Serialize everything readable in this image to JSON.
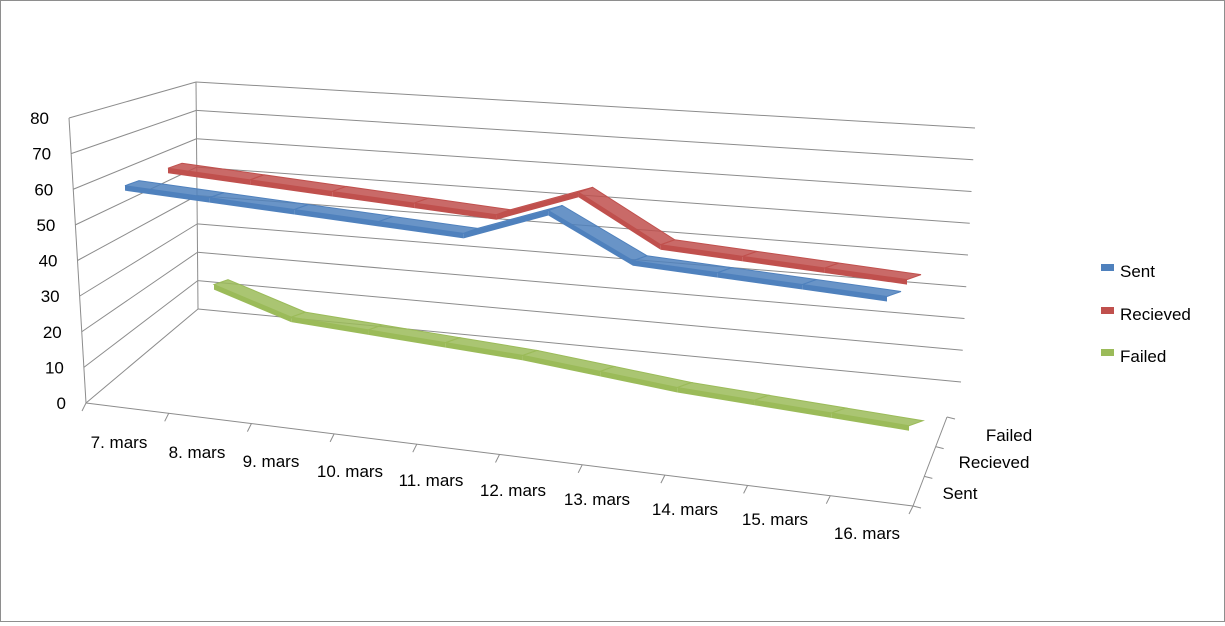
{
  "chart_data": {
    "type": "line",
    "style": "3d-ribbon",
    "categories": [
      "7. mars",
      "8. mars",
      "9. mars",
      "10. mars",
      "11. mars",
      "12. mars",
      "13. mars",
      "14. mars",
      "15. mars",
      "16. mars"
    ],
    "series": [
      {
        "name": "Sent",
        "color": "#4f81bd",
        "values": [
          59,
          58,
          57,
          56,
          55,
          64,
          52,
          51,
          50,
          49
        ]
      },
      {
        "name": "Recieved",
        "color": "#c0504d",
        "values": [
          62,
          61,
          60,
          59,
          58,
          67,
          54,
          53,
          52,
          51
        ]
      },
      {
        "name": "Failed",
        "color": "#9bbb59",
        "values": [
          18,
          11,
          10,
          9,
          8,
          6,
          4,
          3,
          2,
          1
        ]
      }
    ],
    "depth_labels": [
      "Sent",
      "Recieved",
      "Failed"
    ],
    "y_ticks": [
      "0",
      "10",
      "20",
      "30",
      "40",
      "50",
      "60",
      "70",
      "80"
    ],
    "ylim": [
      0,
      80
    ],
    "grid": true,
    "legend_position": "right"
  }
}
